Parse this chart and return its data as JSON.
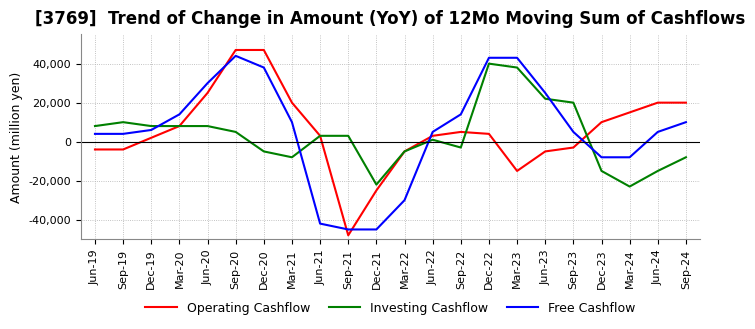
{
  "title": "[3769]  Trend of Change in Amount (YoY) of 12Mo Moving Sum of Cashflows",
  "ylabel": "Amount (million yen)",
  "ylim": [
    -50000,
    55000
  ],
  "yticks": [
    -40000,
    -20000,
    0,
    20000,
    40000
  ],
  "labels": [
    "Jun-19",
    "Sep-19",
    "Dec-19",
    "Mar-20",
    "Jun-20",
    "Sep-20",
    "Dec-20",
    "Mar-21",
    "Jun-21",
    "Sep-21",
    "Dec-21",
    "Mar-22",
    "Jun-22",
    "Sep-22",
    "Dec-22",
    "Mar-23",
    "Jun-23",
    "Sep-23",
    "Dec-23",
    "Mar-24",
    "Jun-24",
    "Sep-24"
  ],
  "operating": [
    -4000,
    -4000,
    2000,
    8000,
    25000,
    47000,
    47000,
    20000,
    3000,
    -48000,
    -25000,
    -5000,
    3000,
    5000,
    4000,
    -15000,
    -5000,
    -3000,
    10000,
    15000,
    20000,
    20000
  ],
  "investing": [
    8000,
    10000,
    8000,
    8000,
    8000,
    5000,
    -5000,
    -8000,
    3000,
    3000,
    -22000,
    -5000,
    1000,
    -3000,
    40000,
    38000,
    22000,
    20000,
    -15000,
    -23000,
    -15000,
    -8000
  ],
  "free": [
    4000,
    4000,
    6000,
    14000,
    30000,
    44000,
    38000,
    10000,
    -42000,
    -45000,
    -45000,
    -30000,
    5000,
    14000,
    43000,
    43000,
    25000,
    5000,
    -8000,
    -8000,
    5000,
    10000
  ],
  "operating_color": "#ff0000",
  "investing_color": "#008000",
  "free_color": "#0000ff",
  "background_color": "#ffffff",
  "grid_color": "#b0b0b0",
  "title_fontsize": 12,
  "label_fontsize": 9,
  "tick_fontsize": 8,
  "legend_fontsize": 9
}
